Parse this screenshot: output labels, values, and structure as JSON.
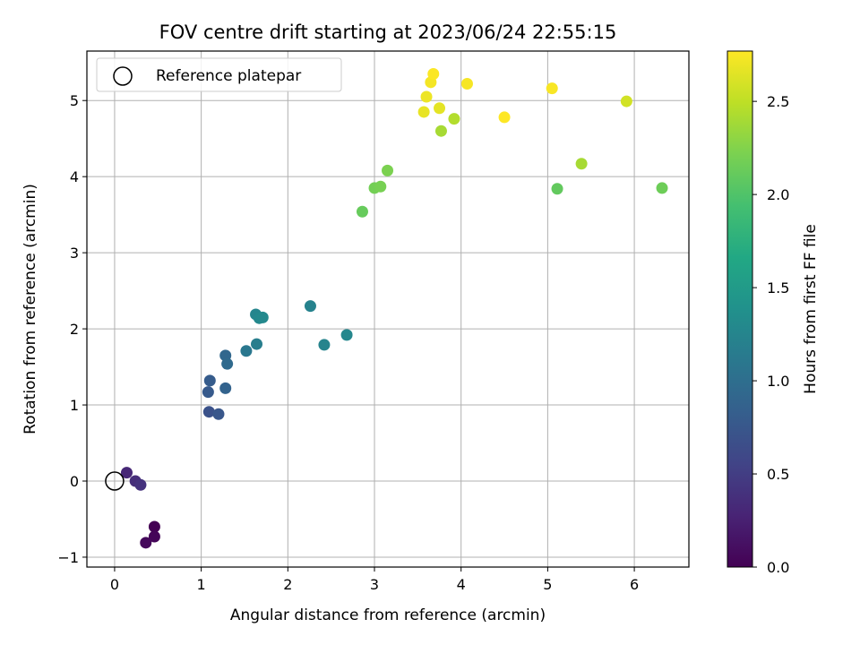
{
  "chart_data": {
    "type": "scatter",
    "title": "FOV centre drift starting at 2023/06/24 22:55:15",
    "xlabel": "Angular distance from reference (arcmin)",
    "ylabel": "Rotation from reference (arcmin)",
    "xlim": [
      -0.32,
      6.63
    ],
    "ylim": [
      -1.13,
      5.65
    ],
    "x_ticks": [
      0,
      1,
      2,
      3,
      4,
      5,
      6
    ],
    "y_ticks": [
      -1,
      0,
      1,
      2,
      3,
      4,
      5
    ],
    "grid": true,
    "colormap": "viridis",
    "colorbar": {
      "label": "Hours from first FF file",
      "range": [
        0.0,
        2.77
      ],
      "ticks": [
        0.0,
        0.5,
        1.0,
        1.5,
        2.0,
        2.5
      ],
      "tick_labels": [
        "0.0",
        "0.5",
        "1.0",
        "1.5",
        "2.0",
        "2.5"
      ]
    },
    "legend": {
      "position": "top-left",
      "entries": [
        {
          "label": "Reference platepar",
          "marker": "open-circle"
        }
      ]
    },
    "reference_point": {
      "x": 0,
      "y": 0
    },
    "points": [
      {
        "x": 0.46,
        "y": -0.6,
        "c": 0.0
      },
      {
        "x": 0.46,
        "y": -0.73,
        "c": 0.03
      },
      {
        "x": 0.36,
        "y": -0.81,
        "c": 0.06
      },
      {
        "x": 0.14,
        "y": 0.11,
        "c": 0.3
      },
      {
        "x": 0.24,
        "y": 0.0,
        "c": 0.36
      },
      {
        "x": 0.3,
        "y": -0.05,
        "c": 0.4
      },
      {
        "x": 1.09,
        "y": 0.91,
        "c": 0.7
      },
      {
        "x": 1.2,
        "y": 0.88,
        "c": 0.75
      },
      {
        "x": 1.08,
        "y": 1.17,
        "c": 0.78
      },
      {
        "x": 1.1,
        "y": 1.32,
        "c": 0.8
      },
      {
        "x": 1.28,
        "y": 1.22,
        "c": 0.88
      },
      {
        "x": 1.28,
        "y": 1.65,
        "c": 0.92
      },
      {
        "x": 1.3,
        "y": 1.54,
        "c": 0.95
      },
      {
        "x": 1.52,
        "y": 1.71,
        "c": 1.1
      },
      {
        "x": 1.64,
        "y": 1.8,
        "c": 1.18
      },
      {
        "x": 1.63,
        "y": 2.19,
        "c": 1.25
      },
      {
        "x": 1.67,
        "y": 2.14,
        "c": 1.28
      },
      {
        "x": 1.71,
        "y": 2.15,
        "c": 1.3
      },
      {
        "x": 2.26,
        "y": 2.3,
        "c": 1.22
      },
      {
        "x": 2.42,
        "y": 1.79,
        "c": 1.24
      },
      {
        "x": 2.68,
        "y": 1.92,
        "c": 1.27
      },
      {
        "x": 2.86,
        "y": 3.54,
        "c": 2.12
      },
      {
        "x": 3.0,
        "y": 3.85,
        "c": 2.18
      },
      {
        "x": 3.07,
        "y": 3.87,
        "c": 2.2
      },
      {
        "x": 3.15,
        "y": 4.08,
        "c": 2.22
      },
      {
        "x": 5.11,
        "y": 3.84,
        "c": 2.1
      },
      {
        "x": 6.32,
        "y": 3.85,
        "c": 2.15
      },
      {
        "x": 3.77,
        "y": 4.6,
        "c": 2.4
      },
      {
        "x": 3.92,
        "y": 4.76,
        "c": 2.45
      },
      {
        "x": 5.39,
        "y": 4.17,
        "c": 2.4
      },
      {
        "x": 5.91,
        "y": 4.99,
        "c": 2.58
      },
      {
        "x": 3.57,
        "y": 4.85,
        "c": 2.68
      },
      {
        "x": 3.6,
        "y": 5.05,
        "c": 2.7
      },
      {
        "x": 3.75,
        "y": 4.9,
        "c": 2.66
      },
      {
        "x": 3.65,
        "y": 5.24,
        "c": 2.73
      },
      {
        "x": 3.68,
        "y": 5.35,
        "c": 2.76
      },
      {
        "x": 4.07,
        "y": 5.22,
        "c": 2.74
      },
      {
        "x": 4.5,
        "y": 4.78,
        "c": 2.77
      },
      {
        "x": 5.05,
        "y": 5.16,
        "c": 2.75
      }
    ]
  }
}
